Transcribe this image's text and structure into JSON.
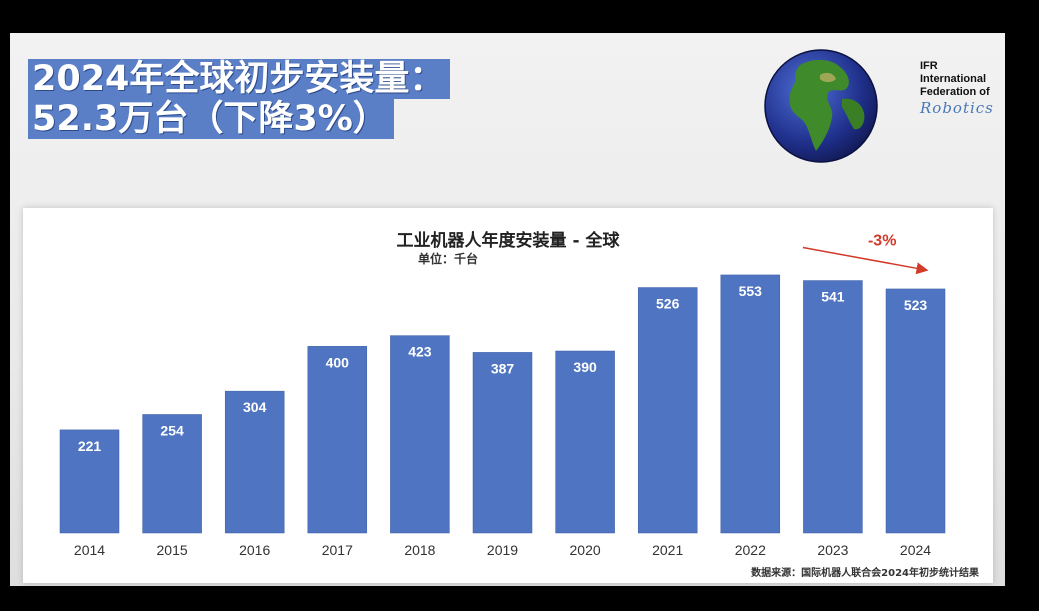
{
  "headline": {
    "line1": "2024年全球初步安装量：",
    "line2": "52.3万台（下降3%）"
  },
  "logo": {
    "globe_icon": "globe-icon",
    "line1": "IFR",
    "line2": "International",
    "line3": "Federation of",
    "script": "Robotics"
  },
  "colors": {
    "bar": "#4f74c1",
    "headline_bg": "#5a7fc7",
    "annotation": "#d23a2a"
  },
  "chart_data": {
    "type": "bar",
    "title": "工业机器人年度安装量 - 全球",
    "subtitle": "单位：千台",
    "categories": [
      "2014",
      "2015",
      "2016",
      "2017",
      "2018",
      "2019",
      "2020",
      "2021",
      "2022",
      "2023",
      "2024"
    ],
    "values": [
      221,
      254,
      304,
      400,
      423,
      387,
      390,
      526,
      553,
      541,
      523
    ],
    "ylim": [
      0,
      600
    ],
    "grid": false,
    "annotation": {
      "text": "-3%",
      "from": "2023",
      "to": "2024"
    },
    "source": "数据来源：国际机器人联合会2024年初步统计结果"
  }
}
